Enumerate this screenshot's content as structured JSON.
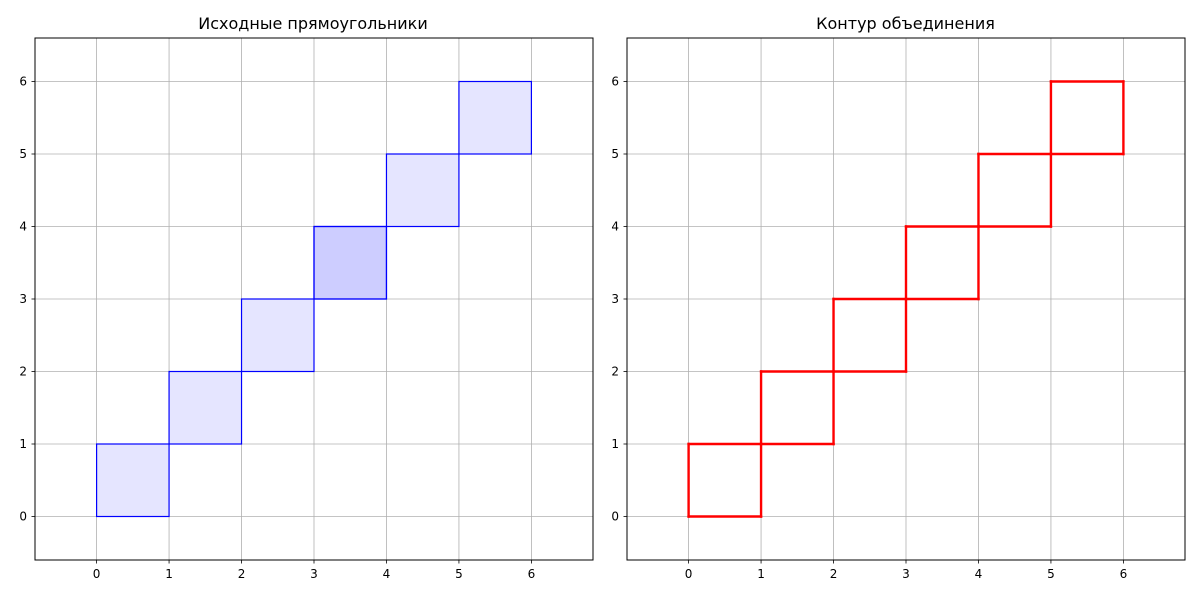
{
  "chart_data": [
    {
      "type": "rectangles",
      "title": "Исходные прямоугольники",
      "xlabel": "",
      "ylabel": "",
      "xlim": [
        -0.85,
        6.85
      ],
      "ylim": [
        -0.6,
        6.6
      ],
      "xticks": [
        0,
        1,
        2,
        3,
        4,
        5,
        6
      ],
      "yticks": [
        0,
        1,
        2,
        3,
        4,
        5,
        6
      ],
      "grid": true,
      "style": {
        "edge_color": "#0000ff",
        "fill_color": "#0000ff",
        "fill_opacity": 0.1
      },
      "rectangles": [
        {
          "x": 0,
          "y": 0,
          "width": 1,
          "height": 1
        },
        {
          "x": 1,
          "y": 1,
          "width": 1,
          "height": 1
        },
        {
          "x": 2,
          "y": 2,
          "width": 1,
          "height": 1
        },
        {
          "x": 3,
          "y": 3,
          "width": 1,
          "height": 1
        },
        {
          "x": 3,
          "y": 3,
          "width": 1,
          "height": 1
        },
        {
          "x": 4,
          "y": 4,
          "width": 1,
          "height": 1
        },
        {
          "x": 5,
          "y": 5,
          "width": 1,
          "height": 1
        }
      ]
    },
    {
      "type": "line",
      "title": "Контур объединения",
      "xlabel": "",
      "ylabel": "",
      "xlim": [
        -0.85,
        6.85
      ],
      "ylim": [
        -0.6,
        6.6
      ],
      "xticks": [
        0,
        1,
        2,
        3,
        4,
        5,
        6
      ],
      "yticks": [
        0,
        1,
        2,
        3,
        4,
        5,
        6
      ],
      "grid": true,
      "style": {
        "line_color": "#ff0000"
      },
      "segments": [
        [
          [
            0,
            0
          ],
          [
            1,
            0
          ]
        ],
        [
          [
            1,
            0
          ],
          [
            1,
            1
          ]
        ],
        [
          [
            1,
            1
          ],
          [
            0,
            1
          ]
        ],
        [
          [
            0,
            1
          ],
          [
            0,
            0
          ]
        ],
        [
          [
            1,
            1
          ],
          [
            2,
            1
          ]
        ],
        [
          [
            2,
            1
          ],
          [
            2,
            2
          ]
        ],
        [
          [
            2,
            2
          ],
          [
            1,
            2
          ]
        ],
        [
          [
            1,
            2
          ],
          [
            1,
            1
          ]
        ],
        [
          [
            2,
            2
          ],
          [
            3,
            2
          ]
        ],
        [
          [
            3,
            2
          ],
          [
            3,
            3
          ]
        ],
        [
          [
            3,
            3
          ],
          [
            2,
            3
          ]
        ],
        [
          [
            2,
            3
          ],
          [
            2,
            2
          ]
        ],
        [
          [
            3,
            3
          ],
          [
            4,
            3
          ]
        ],
        [
          [
            4,
            3
          ],
          [
            4,
            4
          ]
        ],
        [
          [
            4,
            4
          ],
          [
            3,
            4
          ]
        ],
        [
          [
            3,
            4
          ],
          [
            3,
            3
          ]
        ],
        [
          [
            4,
            4
          ],
          [
            5,
            4
          ]
        ],
        [
          [
            5,
            4
          ],
          [
            5,
            5
          ]
        ],
        [
          [
            5,
            5
          ],
          [
            4,
            5
          ]
        ],
        [
          [
            4,
            5
          ],
          [
            4,
            4
          ]
        ],
        [
          [
            5,
            5
          ],
          [
            6,
            5
          ]
        ],
        [
          [
            6,
            5
          ],
          [
            6,
            6
          ]
        ],
        [
          [
            6,
            6
          ],
          [
            5,
            6
          ]
        ],
        [
          [
            5,
            6
          ],
          [
            5,
            5
          ]
        ]
      ]
    }
  ]
}
